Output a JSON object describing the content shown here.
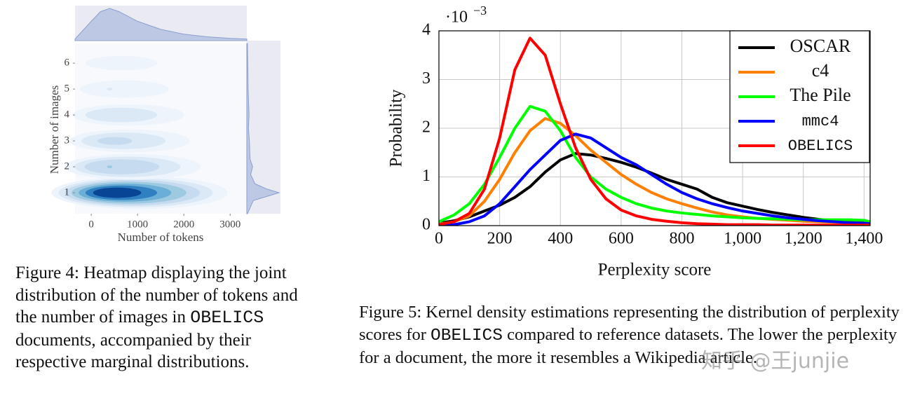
{
  "chart_data": [
    {
      "type": "kde2d",
      "xlabel": "Number of tokens",
      "ylabel": "Number of images",
      "xlim": [
        -350,
        3360
      ],
      "ylim": [
        0.19,
        6.76
      ],
      "xticks": [
        0,
        1000,
        2000,
        3000
      ],
      "yticks": [
        1,
        2,
        3,
        4,
        5,
        6
      ],
      "x_marginal": {
        "x": [
          -350,
          0,
          200,
          400,
          600,
          1000,
          1500,
          2000,
          2500,
          3000,
          3360
        ],
        "values": [
          0.05,
          0.6,
          0.9,
          1,
          0.9,
          0.6,
          0.35,
          0.2,
          0.12,
          0.07,
          0.05
        ]
      },
      "y_marginal": {
        "y": [
          0.19,
          0.7,
          0.85,
          1,
          1.15,
          1.35,
          1.7,
          2,
          2.3,
          3,
          3.5,
          4,
          5,
          6,
          6.76
        ],
        "values": [
          0.02,
          0.2,
          0.6,
          1,
          0.6,
          0.25,
          0.12,
          0.18,
          0.1,
          0.08,
          0.05,
          0.07,
          0.04,
          0.03,
          0.02
        ]
      },
      "rows": [
        {
          "y": 1,
          "x_center": 400,
          "density": 1
        },
        {
          "y": 2,
          "x_center": 400,
          "density": 0.15
        },
        {
          "y": 3,
          "x_center": 400,
          "density": 0.08
        },
        {
          "y": 4,
          "x_center": 400,
          "density": 0.06
        },
        {
          "y": 5,
          "x_center": 400,
          "density": 0.03
        },
        {
          "y": 6,
          "x_center": 400,
          "density": 0.02
        }
      ]
    },
    {
      "type": "line",
      "xlabel": "Perplexity score",
      "ylabel": "Probability",
      "y_multiplier": "·10",
      "y_multiplier_exponent": "−3",
      "xlim": [
        0,
        1420
      ],
      "ylim": [
        0,
        4
      ],
      "xticks": [
        0,
        200,
        400,
        600,
        800,
        {
          "value": 1000,
          "label": "1,000"
        },
        {
          "value": 1200,
          "label": "1,200"
        },
        {
          "value": 1400,
          "label": "1,400"
        }
      ],
      "yticks": [
        0,
        1,
        2,
        3,
        4
      ],
      "grid": true,
      "legend": "upper right",
      "x": [
        0,
        50,
        100,
        150,
        200,
        250,
        300,
        350,
        400,
        450,
        500,
        550,
        600,
        650,
        700,
        750,
        800,
        850,
        900,
        950,
        1000,
        1050,
        1100,
        1150,
        1200,
        1250,
        1300,
        1350,
        1400,
        1420
      ],
      "series": [
        {
          "name": "OSCAR",
          "color": "#000000",
          "mono": false,
          "values": [
            0.05,
            0.1,
            0.18,
            0.3,
            0.42,
            0.58,
            0.8,
            1.1,
            1.35,
            1.48,
            1.45,
            1.38,
            1.3,
            1.2,
            1.08,
            0.95,
            0.85,
            0.75,
            0.58,
            0.47,
            0.4,
            0.33,
            0.27,
            0.22,
            0.17,
            0.13,
            0.1,
            0.08,
            0.06,
            0.05
          ]
        },
        {
          "name": "c4",
          "color": "#ff8000",
          "mono": false,
          "values": [
            0.03,
            0.08,
            0.2,
            0.5,
            0.95,
            1.5,
            1.95,
            2.2,
            2.1,
            1.85,
            1.55,
            1.3,
            1.05,
            0.85,
            0.68,
            0.55,
            0.45,
            0.36,
            0.28,
            0.22,
            0.18,
            0.15,
            0.13,
            0.11,
            0.09,
            0.08,
            0.07,
            0.06,
            0.05,
            0.04
          ]
        },
        {
          "name": "The Pile",
          "color": "#00ff00",
          "mono": false,
          "values": [
            0.08,
            0.22,
            0.45,
            0.85,
            1.4,
            2.0,
            2.45,
            2.35,
            1.95,
            1.4,
            1.0,
            0.75,
            0.58,
            0.45,
            0.36,
            0.3,
            0.26,
            0.23,
            0.2,
            0.18,
            0.16,
            0.15,
            0.14,
            0.13,
            0.12,
            0.12,
            0.12,
            0.12,
            0.11,
            0.08
          ]
        },
        {
          "name": "mmc4",
          "color": "#0000ff",
          "mono": true,
          "values": [
            0.0,
            0.02,
            0.08,
            0.2,
            0.45,
            0.8,
            1.15,
            1.45,
            1.75,
            1.88,
            1.8,
            1.6,
            1.4,
            1.25,
            1.05,
            0.85,
            0.68,
            0.55,
            0.45,
            0.37,
            0.3,
            0.25,
            0.2,
            0.16,
            0.13,
            0.1,
            0.08,
            0.06,
            0.05,
            0.04
          ]
        },
        {
          "name": "OBELICS",
          "color": "#ff0000",
          "mono": true,
          "values": [
            0.02,
            0.08,
            0.25,
            0.75,
            1.8,
            3.2,
            3.85,
            3.5,
            2.5,
            1.6,
            0.95,
            0.55,
            0.32,
            0.2,
            0.13,
            0.09,
            0.06,
            0.04,
            0.03,
            0.02,
            0.02,
            0.02,
            0.01,
            0.01,
            0.01,
            0.01,
            0.01,
            0.01,
            0.01,
            0.01
          ]
        }
      ]
    }
  ],
  "figure4_caption": [
    {
      "text": "Figure 4: Heatmap displaying the joint distribution of the number of tokens and the number of images in ",
      "mono": false
    },
    {
      "text": "OBELICS",
      "mono": true
    },
    {
      "text": " documents, accompanied by their respective marginal distributions.",
      "mono": false
    }
  ],
  "figure5_caption": [
    {
      "text": "Figure 5: Kernel density estimations representing the distribution of perplexity scores for ",
      "mono": false
    },
    {
      "text": "OBELICS",
      "mono": true
    },
    {
      "text": " compared to reference datasets. The lower the perplexity for a document, the more it resembles a Wikipedia article.",
      "mono": false
    }
  ],
  "watermark": "知乎 @王junjie"
}
